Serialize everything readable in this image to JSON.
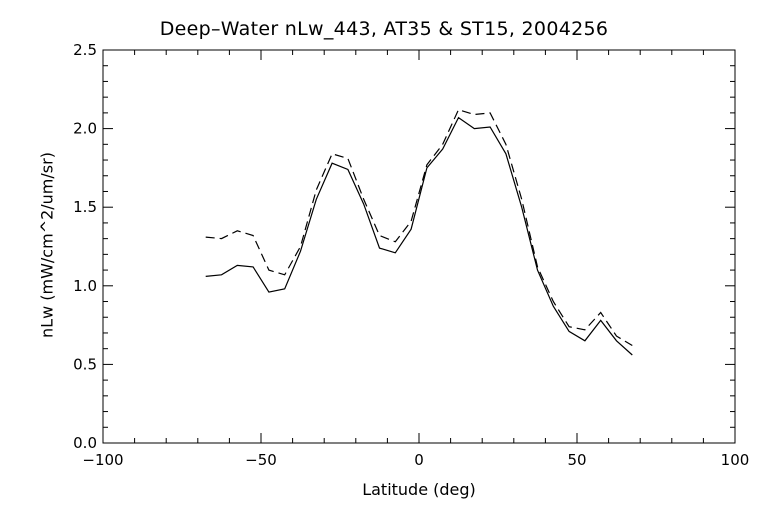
{
  "chart_data": {
    "type": "line",
    "title": "Deep–Water nLw_443, AT35 & ST15, 2004256",
    "xlabel": "Latitude (deg)",
    "ylabel": "nLw (mW/cm^2/um/sr)",
    "xlim": [
      -100,
      100
    ],
    "ylim": [
      0.0,
      2.5
    ],
    "x_ticks": [
      -100,
      -50,
      0,
      50,
      100
    ],
    "x_tick_labels": [
      "−100",
      "−50",
      "0",
      "50",
      "100"
    ],
    "y_ticks": [
      0.0,
      0.5,
      1.0,
      1.5,
      2.0,
      2.5
    ],
    "y_tick_labels": [
      "0.0",
      "0.5",
      "1.0",
      "1.5",
      "2.0",
      "2.5"
    ],
    "grid": false,
    "series": [
      {
        "style": "solid",
        "x": [
          -67.5,
          -62.5,
          -57.5,
          -52.5,
          -47.5,
          -42.5,
          -37.5,
          -32.5,
          -27.5,
          -22.5,
          -17.5,
          -12.5,
          -7.5,
          -2.5,
          2.5,
          7.5,
          12.5,
          17.5,
          22.5,
          27.5,
          32.5,
          37.5,
          42.5,
          47.5,
          52.5,
          57.5,
          62.5,
          67.5
        ],
        "values": [
          1.06,
          1.07,
          1.13,
          1.12,
          0.96,
          0.98,
          1.22,
          1.55,
          1.78,
          1.74,
          1.52,
          1.24,
          1.21,
          1.36,
          1.75,
          1.87,
          2.07,
          2.0,
          2.01,
          1.84,
          1.5,
          1.1,
          0.87,
          0.71,
          0.65,
          0.78,
          0.65,
          0.56
        ]
      },
      {
        "style": "dashed",
        "x": [
          -67.5,
          -62.5,
          -57.5,
          -52.5,
          -47.5,
          -42.5,
          -37.5,
          -32.5,
          -27.5,
          -22.5,
          -17.5,
          -12.5,
          -7.5,
          -2.5,
          2.5,
          7.5,
          12.5,
          17.5,
          22.5,
          27.5,
          32.5,
          37.5,
          42.5,
          47.5,
          52.5,
          57.5,
          62.5,
          67.5
        ],
        "values": [
          1.31,
          1.3,
          1.35,
          1.32,
          1.1,
          1.07,
          1.25,
          1.61,
          1.84,
          1.81,
          1.55,
          1.32,
          1.28,
          1.41,
          1.77,
          1.9,
          2.12,
          2.09,
          2.1,
          1.9,
          1.55,
          1.12,
          0.9,
          0.74,
          0.72,
          0.83,
          0.68,
          0.62
        ]
      }
    ]
  }
}
